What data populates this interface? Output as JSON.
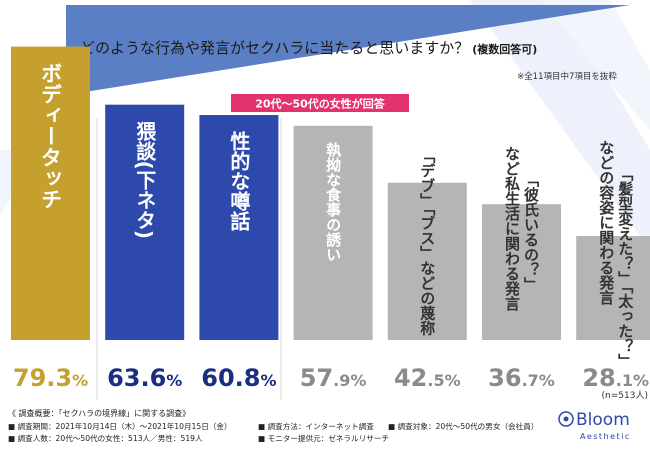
{
  "title": "どのような行為や発言がセクハラに当たると思いますか？",
  "title_suffix": "(複数回答可)",
  "note": "※全11項目中7項目を抜粋",
  "badge": "20代〜50代の女性が回答",
  "n_label": "(n=513人)",
  "colors": {
    "gold": "#c5a02e",
    "blue": "#2d49ab",
    "gray": "#b5b5b5",
    "text_gray": "#8a8a8a",
    "navy": "#1b2f80",
    "pink": "#e3326c",
    "title_tri": "#5b7fc4"
  },
  "chart_data": {
    "type": "bar",
    "categories": [
      [
        "ボディータッチ"
      ],
      [
        "猥談(下ネタ)"
      ],
      [
        "性的な噂話"
      ],
      [
        "執拗な食事の誘い"
      ],
      [
        "「デブ」「ブス」などの蔑称"
      ],
      [
        "「彼氏いるの？」",
        "など私生活に関わる発言"
      ],
      [
        "「髪型変えた？」「太った？」",
        "などの容姿に関わる発言"
      ]
    ],
    "values": [
      79.3,
      63.6,
      60.8,
      57.9,
      42.5,
      36.7,
      28.1
    ],
    "value_labels": [
      {
        "num": "79.3",
        "unit": "%"
      },
      {
        "num": "63.6",
        "unit": "%"
      },
      {
        "num": "60.8",
        "unit": "%"
      },
      {
        "num": "57",
        "unit": ".9%"
      },
      {
        "num": "42",
        "unit": ".5%"
      },
      {
        "num": "36",
        "unit": ".7%"
      },
      {
        "num": "28",
        "unit": ".1%"
      }
    ],
    "styles": [
      "gold",
      "blue",
      "blue",
      "gray",
      "gray",
      "gray",
      "gray"
    ],
    "ylim": [
      0,
      100
    ]
  },
  "footer": {
    "heading": "《 調査概要：「セクハラの境界線」に関する調査》",
    "rows": [
      [
        "■ 調査期間：2021年10月14日（木）〜2021年10月15日（金）",
        "■ 調査方法：インターネット調査",
        "■ 調査対象：20代〜50代の男女（会社員）"
      ],
      [
        "■ 調査人数：20代〜50代の女性：513人／男性：519人",
        "■ モニター提供元：ゼネラルリサーチ",
        ""
      ]
    ]
  },
  "logo": {
    "name": "Bloom",
    "sub": "Aesthetic"
  }
}
